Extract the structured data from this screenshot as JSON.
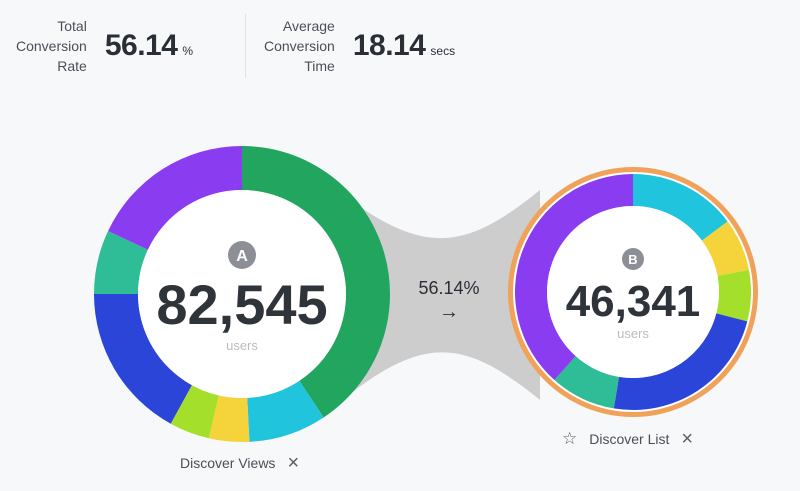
{
  "metrics": {
    "total_conversion": {
      "label": "Total\nConversion\nRate",
      "value": "56.14",
      "unit": "%"
    },
    "avg_time": {
      "label": "Average\nConversion\nTime",
      "value": "18.14",
      "unit": "secs"
    }
  },
  "step_a": {
    "badge": "A",
    "count": "82,545",
    "sublabel": "users",
    "name": "Discover Views",
    "segments": [
      {
        "color": "#21a55f",
        "share": 0.407
      },
      {
        "color": "#21c4dd",
        "share": 0.085
      },
      {
        "color": "#f5d33b",
        "share": 0.044
      },
      {
        "color": "#a4df2c",
        "share": 0.044
      },
      {
        "color": "#2a45d8",
        "share": 0.17
      },
      {
        "color": "#2ebd97",
        "share": 0.07
      },
      {
        "color": "#8a3cf0",
        "share": 0.18
      }
    ]
  },
  "step_b": {
    "badge": "B",
    "count": "46,341",
    "sublabel": "users",
    "name": "Discover List",
    "segments": [
      {
        "color": "#21c4dd",
        "share": 0.148
      },
      {
        "color": "#f5d33b",
        "share": 0.072
      },
      {
        "color": "#a4df2c",
        "share": 0.07
      },
      {
        "color": "#2a45d8",
        "share": 0.236
      },
      {
        "color": "#2ebd97",
        "share": 0.09
      },
      {
        "color": "#8a3cf0",
        "share": 0.384
      }
    ]
  },
  "conversion": {
    "percent": "56.14%",
    "arrow": "→"
  },
  "icons": {
    "close": "close-icon",
    "star": "star-icon",
    "arrow": "arrow-right-icon"
  },
  "colors": {
    "bridge": "#cdcdcd",
    "selected_ring": "#f0a15a",
    "badge": "#8c9096"
  }
}
